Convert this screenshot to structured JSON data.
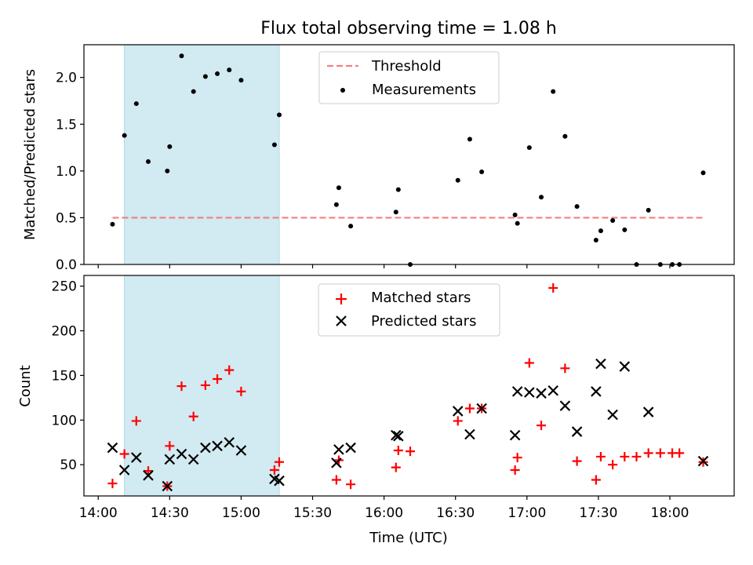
{
  "chart_data": {
    "title": "Flux total observing time = 1.08 h",
    "xlabel": "Time (UTC)",
    "x_ticks": [
      "14:00",
      "14:30",
      "15:00",
      "15:30",
      "16:00",
      "16:30",
      "17:00",
      "17:30",
      "18:00"
    ],
    "xlim": [
      "13:54",
      "18:27"
    ],
    "highlight_span": [
      "14:11",
      "15:16"
    ],
    "highlight_color": "#add8e6",
    "panels": [
      {
        "type": "scatter",
        "ylabel": "Matched/Predicted stars",
        "ylim": [
          0,
          2.35
        ],
        "y_ticks": [
          "0.0",
          "0.5",
          "1.0",
          "1.5",
          "2.0"
        ],
        "legend": "top-center",
        "series": [
          {
            "name": "Threshold",
            "kind": "line",
            "color": "#f08080",
            "dash": true,
            "points": [
              {
                "x": "14:06",
                "y": 0.5
              },
              {
                "x": "18:14",
                "y": 0.5
              }
            ]
          },
          {
            "name": "Measurements",
            "kind": "dot",
            "color": "#000000",
            "points": [
              {
                "x": "14:06",
                "y": 0.43
              },
              {
                "x": "14:11",
                "y": 1.38
              },
              {
                "x": "14:16",
                "y": 1.72
              },
              {
                "x": "14:21",
                "y": 1.1
              },
              {
                "x": "14:29",
                "y": 1.0
              },
              {
                "x": "14:30",
                "y": 1.26
              },
              {
                "x": "14:35",
                "y": 2.23
              },
              {
                "x": "14:40",
                "y": 1.85
              },
              {
                "x": "14:45",
                "y": 2.01
              },
              {
                "x": "14:50",
                "y": 2.04
              },
              {
                "x": "14:55",
                "y": 2.08
              },
              {
                "x": "15:00",
                "y": 1.97
              },
              {
                "x": "15:14",
                "y": 1.28
              },
              {
                "x": "15:16",
                "y": 1.6
              },
              {
                "x": "15:40",
                "y": 0.64
              },
              {
                "x": "15:41",
                "y": 0.82
              },
              {
                "x": "15:46",
                "y": 0.41
              },
              {
                "x": "16:05",
                "y": 0.56
              },
              {
                "x": "16:06",
                "y": 0.8
              },
              {
                "x": "16:11",
                "y": 0.0
              },
              {
                "x": "16:31",
                "y": 0.9
              },
              {
                "x": "16:36",
                "y": 1.34
              },
              {
                "x": "16:41",
                "y": 0.99
              },
              {
                "x": "16:55",
                "y": 0.53
              },
              {
                "x": "16:56",
                "y": 0.44
              },
              {
                "x": "17:01",
                "y": 1.25
              },
              {
                "x": "17:06",
                "y": 0.72
              },
              {
                "x": "17:11",
                "y": 1.85
              },
              {
                "x": "17:16",
                "y": 1.37
              },
              {
                "x": "17:21",
                "y": 0.62
              },
              {
                "x": "17:29",
                "y": 0.26
              },
              {
                "x": "17:31",
                "y": 0.36
              },
              {
                "x": "17:36",
                "y": 0.47
              },
              {
                "x": "17:41",
                "y": 0.37
              },
              {
                "x": "17:46",
                "y": 0.0
              },
              {
                "x": "17:51",
                "y": 0.58
              },
              {
                "x": "17:56",
                "y": 0.0
              },
              {
                "x": "18:01",
                "y": 0.0
              },
              {
                "x": "18:04",
                "y": 0.0
              },
              {
                "x": "18:14",
                "y": 0.98
              }
            ]
          }
        ]
      },
      {
        "type": "scatter",
        "ylabel": "Count",
        "ylim": [
          15,
          262
        ],
        "y_ticks": [
          "50",
          "100",
          "150",
          "200",
          "250"
        ],
        "legend": "top-center",
        "series": [
          {
            "name": "Matched stars",
            "kind": "plus",
            "color": "#ff0000",
            "points": [
              {
                "x": "14:06",
                "y": 29
              },
              {
                "x": "14:11",
                "y": 62
              },
              {
                "x": "14:16",
                "y": 99
              },
              {
                "x": "14:21",
                "y": 43
              },
              {
                "x": "14:29",
                "y": 26
              },
              {
                "x": "14:30",
                "y": 71
              },
              {
                "x": "14:35",
                "y": 138
              },
              {
                "x": "14:40",
                "y": 104
              },
              {
                "x": "14:45",
                "y": 139
              },
              {
                "x": "14:50",
                "y": 146
              },
              {
                "x": "14:55",
                "y": 156
              },
              {
                "x": "15:00",
                "y": 132
              },
              {
                "x": "15:14",
                "y": 44
              },
              {
                "x": "15:16",
                "y": 53
              },
              {
                "x": "15:40",
                "y": 33
              },
              {
                "x": "15:41",
                "y": 55
              },
              {
                "x": "15:46",
                "y": 28
              },
              {
                "x": "16:05",
                "y": 47
              },
              {
                "x": "16:06",
                "y": 66
              },
              {
                "x": "16:11",
                "y": 65
              },
              {
                "x": "16:31",
                "y": 99
              },
              {
                "x": "16:36",
                "y": 113
              },
              {
                "x": "16:41",
                "y": 113
              },
              {
                "x": "16:55",
                "y": 44
              },
              {
                "x": "16:56",
                "y": 58
              },
              {
                "x": "17:01",
                "y": 164
              },
              {
                "x": "17:06",
                "y": 94
              },
              {
                "x": "17:11",
                "y": 248
              },
              {
                "x": "17:16",
                "y": 158
              },
              {
                "x": "17:21",
                "y": 54
              },
              {
                "x": "17:29",
                "y": 33
              },
              {
                "x": "17:31",
                "y": 59
              },
              {
                "x": "17:36",
                "y": 50
              },
              {
                "x": "17:41",
                "y": 59
              },
              {
                "x": "17:46",
                "y": 59
              },
              {
                "x": "17:51",
                "y": 63
              },
              {
                "x": "17:56",
                "y": 63
              },
              {
                "x": "18:01",
                "y": 63
              },
              {
                "x": "18:04",
                "y": 63
              },
              {
                "x": "18:14",
                "y": 53
              }
            ]
          },
          {
            "name": "Predicted stars",
            "kind": "cross",
            "color": "#000000",
            "points": [
              {
                "x": "14:06",
                "y": 69
              },
              {
                "x": "14:11",
                "y": 44
              },
              {
                "x": "14:16",
                "y": 58
              },
              {
                "x": "14:21",
                "y": 38
              },
              {
                "x": "14:29",
                "y": 26
              },
              {
                "x": "14:30",
                "y": 56
              },
              {
                "x": "14:35",
                "y": 62
              },
              {
                "x": "14:40",
                "y": 56
              },
              {
                "x": "14:45",
                "y": 69
              },
              {
                "x": "14:50",
                "y": 71
              },
              {
                "x": "14:55",
                "y": 75
              },
              {
                "x": "15:00",
                "y": 66
              },
              {
                "x": "15:14",
                "y": 34
              },
              {
                "x": "15:16",
                "y": 32
              },
              {
                "x": "15:40",
                "y": 52
              },
              {
                "x": "15:41",
                "y": 67
              },
              {
                "x": "15:46",
                "y": 69
              },
              {
                "x": "16:05",
                "y": 83
              },
              {
                "x": "16:06",
                "y": 82
              },
              {
                "x": "16:31",
                "y": 110
              },
              {
                "x": "16:36",
                "y": 84
              },
              {
                "x": "16:41",
                "y": 113
              },
              {
                "x": "16:55",
                "y": 83
              },
              {
                "x": "16:56",
                "y": 132
              },
              {
                "x": "17:01",
                "y": 131
              },
              {
                "x": "17:06",
                "y": 130
              },
              {
                "x": "17:11",
                "y": 133
              },
              {
                "x": "17:16",
                "y": 116
              },
              {
                "x": "17:21",
                "y": 87
              },
              {
                "x": "17:29",
                "y": 132
              },
              {
                "x": "17:31",
                "y": 163
              },
              {
                "x": "17:36",
                "y": 106
              },
              {
                "x": "17:41",
                "y": 160
              },
              {
                "x": "17:51",
                "y": 109
              },
              {
                "x": "18:14",
                "y": 54
              }
            ]
          }
        ]
      }
    ]
  }
}
